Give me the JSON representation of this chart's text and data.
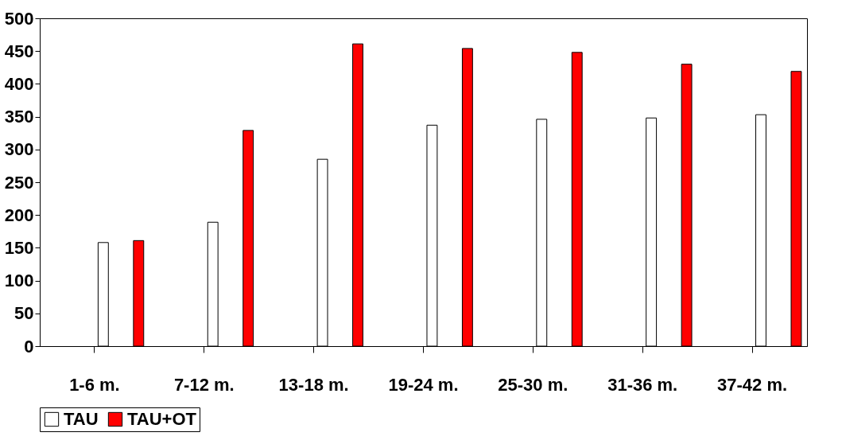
{
  "chart_data": {
    "type": "bar",
    "categories": [
      "1-6 m.",
      "7-12 m.",
      "13-18 m.",
      "19-24 m.",
      "25-30 m.",
      "31-36 m.",
      "37-42 m."
    ],
    "series": [
      {
        "name": "TAU",
        "color": "#ffffff",
        "values": [
          158,
          189,
          285,
          337,
          346,
          348,
          353
        ]
      },
      {
        "name": "TAU+OT",
        "color": "#ff0000",
        "values": [
          161,
          329,
          461,
          454,
          448,
          430,
          419
        ]
      }
    ],
    "ylim": [
      0,
      500
    ],
    "yticks": [
      0,
      50,
      100,
      150,
      200,
      250,
      300,
      350,
      400,
      450,
      500
    ],
    "grid": false,
    "legend": "bottom"
  }
}
